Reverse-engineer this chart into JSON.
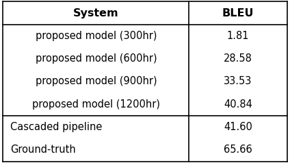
{
  "headers": [
    "System",
    "BLEU"
  ],
  "rows": [
    [
      "proposed model (300hr)",
      "1.81"
    ],
    [
      "proposed model (600hr)",
      "28.58"
    ],
    [
      "proposed model (900hr)",
      "33.53"
    ],
    [
      "proposed model (1200hr)",
      "40.84"
    ],
    [
      "Cascaded pipeline",
      "41.60"
    ],
    [
      "Ground-truth",
      "65.66"
    ]
  ],
  "separator_after_row": 3,
  "bg_color": "#ffffff",
  "text_color": "#000000",
  "header_fontsize": 11.5,
  "body_fontsize": 10.5,
  "col_split": 0.655,
  "figsize": [
    4.24,
    2.38
  ],
  "dpi": 100,
  "lw": 1.2
}
